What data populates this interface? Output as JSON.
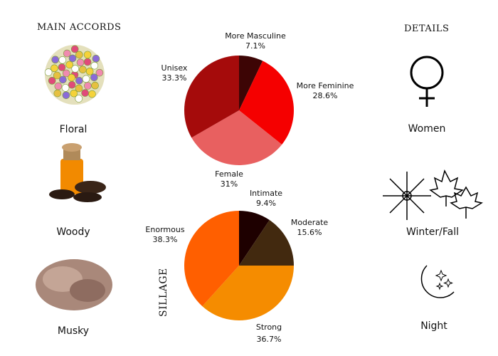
{
  "accords": {
    "title": "MAIN ACCORDS",
    "items": [
      {
        "label": "Floral",
        "icon": "flower-bouquet"
      },
      {
        "label": "Woody",
        "icon": "tonka-beans-bottle"
      },
      {
        "label": "Musky",
        "icon": "musk-fiber"
      }
    ]
  },
  "details": {
    "title": "DETAILS",
    "items": [
      {
        "label": "Women",
        "icon": "venus-symbol"
      },
      {
        "label": "Winter/Fall",
        "icon": "snowflake-maple-leaves"
      },
      {
        "label": "Night",
        "icon": "moon-stars"
      }
    ]
  },
  "chart_data": [
    {
      "type": "pie",
      "series": "gender",
      "categories": [
        "More Masculine",
        "More Feminine",
        "Female",
        "Unisex"
      ],
      "values": [
        7.1,
        28.6,
        31,
        33.3
      ],
      "labels": [
        "7.1%",
        "28.6%",
        "31%",
        "33.3%"
      ],
      "colors": [
        "#3d0505",
        "#f50000",
        "#e86060",
        "#a50b0b"
      ]
    },
    {
      "type": "pie",
      "title": "SILLAGE",
      "categories": [
        "Intimate",
        "Moderate",
        "Strong",
        "Enormous"
      ],
      "values": [
        9.4,
        15.6,
        36.7,
        38.3
      ],
      "labels": [
        "9.4%",
        "15.6%",
        "36.7%",
        "38.3%"
      ],
      "colors": [
        "#1e0000",
        "#42290f",
        "#f58c00",
        "#ff5f00"
      ]
    }
  ]
}
